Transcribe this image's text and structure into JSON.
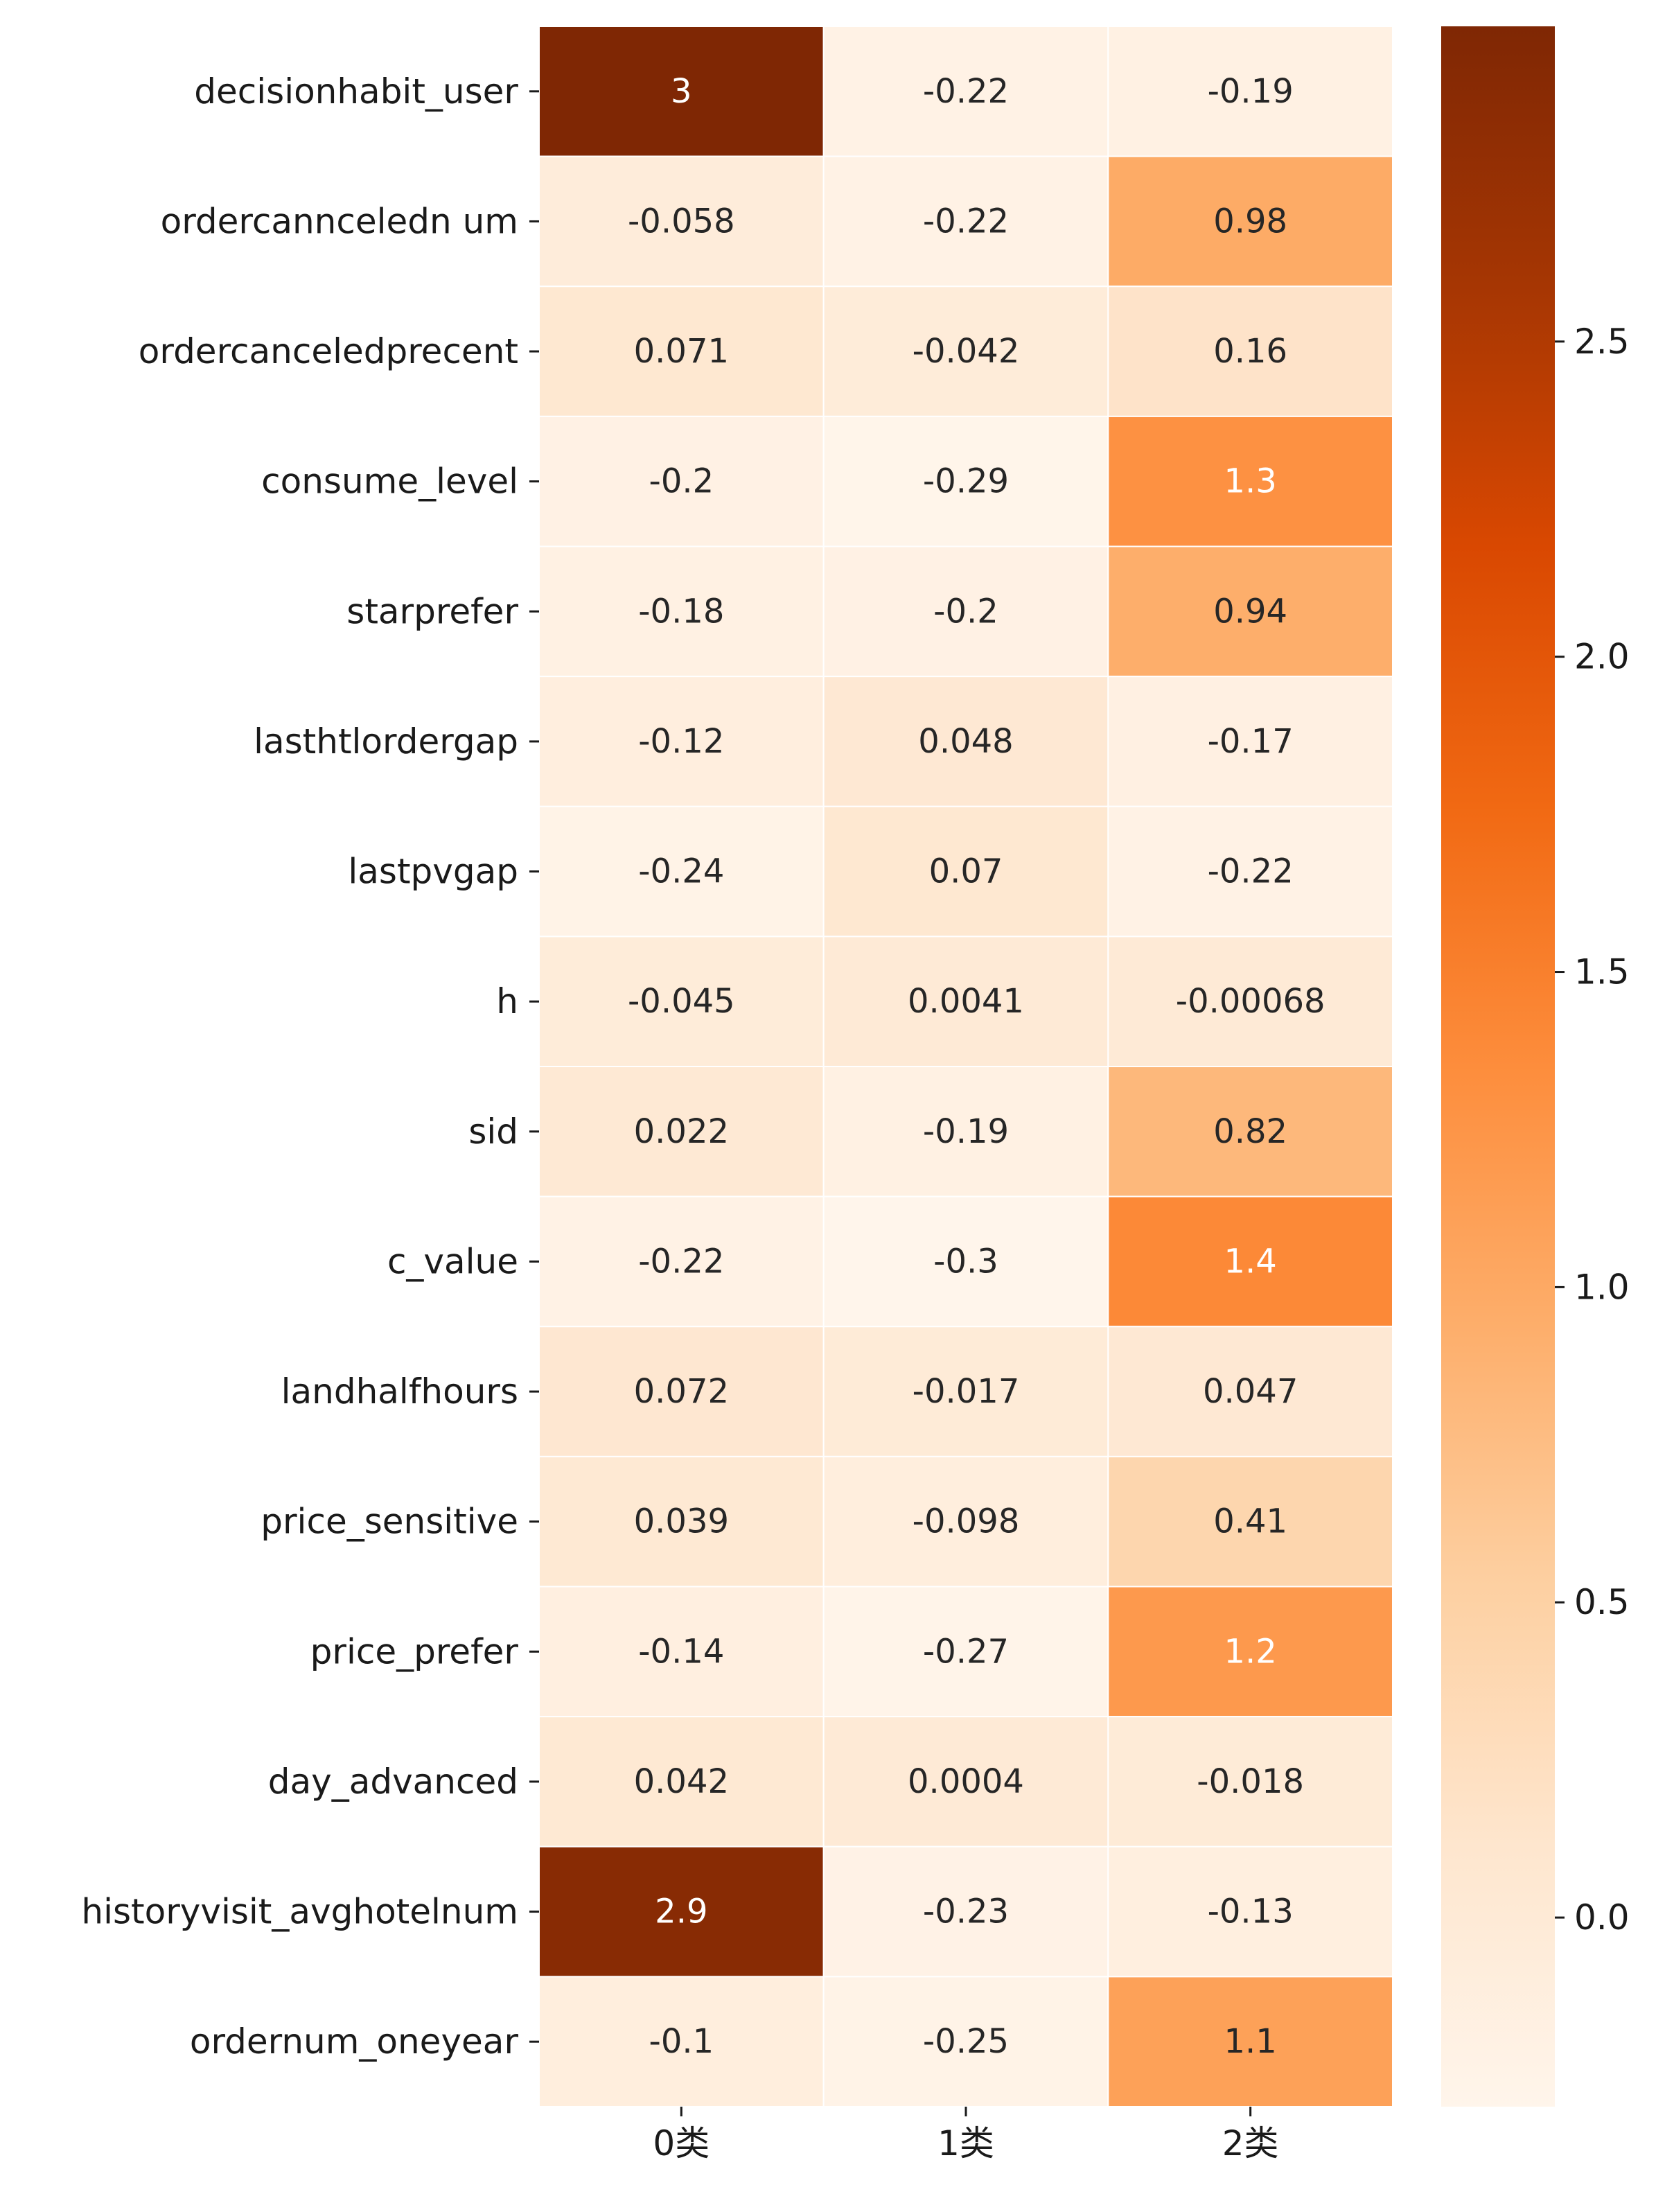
{
  "chart_data": {
    "type": "heatmap",
    "title": "",
    "xlabel": "",
    "ylabel": "",
    "columns": [
      "0类",
      "1类",
      "2类"
    ],
    "rows": [
      "decisionhabit_user",
      "ordercannceledn um",
      "ordercanceledprecent",
      "consume_level",
      "starprefer",
      "lasthtlordergap",
      "lastpvgap",
      "h",
      "sid",
      "c_value",
      "landhalfhours",
      "price_sensitive",
      "price_prefer",
      "day_advanced",
      "historyvisit_avghotelnum",
      "ordernum_oneyear"
    ],
    "values": [
      [
        3,
        -0.22,
        -0.19
      ],
      [
        -0.058,
        -0.22,
        0.98
      ],
      [
        0.071,
        -0.042,
        0.16
      ],
      [
        -0.2,
        -0.29,
        1.3
      ],
      [
        -0.18,
        -0.2,
        0.94
      ],
      [
        -0.12,
        0.048,
        -0.17
      ],
      [
        -0.24,
        0.07,
        -0.22
      ],
      [
        -0.045,
        0.0041,
        -0.00068
      ],
      [
        0.022,
        -0.19,
        0.82
      ],
      [
        -0.22,
        -0.3,
        1.4
      ],
      [
        0.072,
        -0.017,
        0.047
      ],
      [
        0.039,
        -0.098,
        0.41
      ],
      [
        -0.14,
        -0.27,
        1.2
      ],
      [
        0.042,
        0.0004,
        -0.018
      ],
      [
        2.9,
        -0.23,
        -0.13
      ],
      [
        -0.1,
        -0.25,
        1.1
      ]
    ],
    "colormap": "Oranges",
    "vmin": -0.3,
    "vmax": 3,
    "colorbar": {
      "ticks": [
        0.0,
        0.5,
        1.0,
        1.5,
        2.0,
        2.5
      ],
      "tick_labels": [
        "0.0",
        "0.5",
        "1.0",
        "1.5",
        "2.0",
        "2.5"
      ]
    },
    "annotations": true,
    "grid": false,
    "colors": {
      "low": "#fff5eb",
      "high": "#7f2704",
      "cell_border": "#ffffff"
    }
  }
}
